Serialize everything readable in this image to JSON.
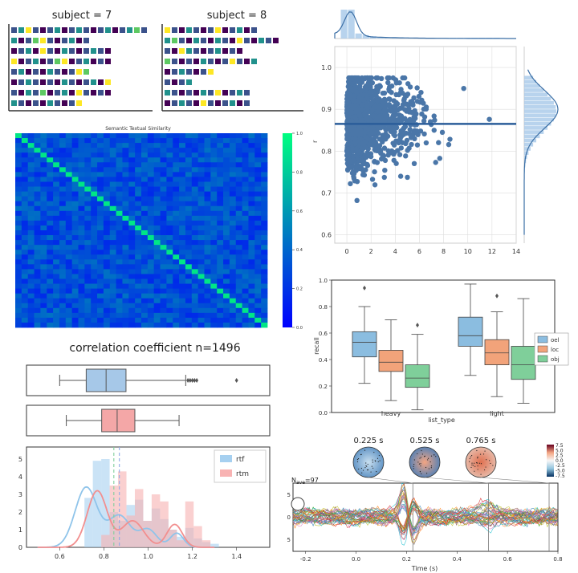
{
  "colors": {
    "viridis": [
      "#440154",
      "#3b528b",
      "#21918c",
      "#5ec962",
      "#fde725",
      "#2c728e",
      "#31688e",
      "#7ad151",
      "#fde725"
    ],
    "scatter": "#4a76a8",
    "blue_fill": "#a6c8e8",
    "red_fill": "#f4a7a7",
    "box_orange": "#f2a37a",
    "box_green": "#7fcf9a",
    "box_blue": "#8bbde0",
    "rtf": "#8fc4ea",
    "rtm": "#f28f8f"
  },
  "chart_data": [
    {
      "id": "subject-grids",
      "type": "heatmap",
      "titles": [
        "subject = 7",
        "subject = 8"
      ],
      "subject7": [
        [
          1,
          2,
          4,
          1,
          0,
          1,
          2,
          0,
          1,
          2,
          1,
          0,
          1,
          2,
          0,
          1,
          2,
          3,
          1
        ],
        [
          2,
          0,
          1,
          3,
          4,
          1,
          0,
          1,
          2,
          0,
          1
        ],
        [
          0,
          1,
          2,
          0,
          4,
          1,
          0,
          2,
          1,
          0,
          1,
          2,
          1,
          0
        ],
        [
          4,
          0,
          1,
          2,
          0,
          1,
          3,
          4,
          0,
          1,
          2,
          0,
          1,
          0
        ],
        [
          1,
          2,
          0,
          1,
          0,
          2,
          1,
          0,
          1,
          4,
          3
        ],
        [
          0,
          1,
          2,
          1,
          0,
          1,
          0,
          2,
          1,
          0,
          1,
          2,
          0,
          4
        ],
        [
          1,
          0,
          2,
          1,
          3,
          0,
          1,
          2,
          0,
          4,
          1,
          0,
          1,
          0
        ],
        [
          2,
          1,
          0,
          1,
          0,
          2,
          1,
          0,
          1,
          4
        ]
      ],
      "subject8": [
        [
          4,
          1,
          0,
          2,
          1,
          0,
          1,
          4,
          0,
          1,
          2,
          0,
          1
        ],
        [
          2,
          3,
          1,
          0,
          2,
          1,
          0,
          2,
          1,
          0,
          4,
          1,
          0,
          2,
          1,
          0
        ],
        [
          1,
          0,
          4,
          2,
          1,
          0,
          1,
          2,
          0,
          1,
          0
        ],
        [
          3,
          1,
          0,
          1,
          0,
          2,
          1,
          0,
          1,
          4,
          1,
          0,
          2
        ],
        [
          0,
          1,
          2,
          1,
          0,
          1,
          4
        ],
        [
          1,
          0,
          1,
          2
        ],
        [
          2,
          1,
          0,
          1,
          0,
          2,
          1,
          4,
          0,
          1,
          2,
          1
        ],
        [
          0,
          1,
          2,
          1,
          0,
          4,
          1,
          0,
          1,
          2,
          0,
          1
        ]
      ]
    },
    {
      "id": "similarity-matrix",
      "type": "heatmap",
      "title": "Semantic Textual Similarity",
      "size": 40,
      "colorbar_ticks": [
        "0.0",
        "0.2",
        "0.4",
        "0.6",
        "0.8",
        "1.0"
      ]
    },
    {
      "id": "joint-scatter",
      "type": "scatter",
      "xlim": [
        -1,
        14
      ],
      "ylim": [
        0.58,
        1.05
      ],
      "xticks": [
        "0",
        "2",
        "4",
        "6",
        "8",
        "10",
        "12",
        "14"
      ],
      "yticks": [
        "0.6",
        "0.7",
        "0.8",
        "0.9",
        "1.0"
      ],
      "ylabel": "r",
      "mean_y": 0.865,
      "n_points": 1400
    },
    {
      "id": "grouped-boxplot",
      "type": "bar",
      "categories": [
        "heavy",
        "light"
      ],
      "xlabel": "list_type",
      "ylabel": "recall",
      "ylim": [
        0,
        1.0
      ],
      "yticks": [
        "0.0",
        "0.2",
        "0.4",
        "0.6",
        "0.8",
        "1.0"
      ],
      "legend": [
        "oel",
        "loc",
        "obj"
      ],
      "legend_position": "right",
      "series": [
        {
          "name": "oel",
          "stats": [
            [
              0.22,
              0.42,
              0.53,
              0.61,
              0.8
            ],
            [
              0.28,
              0.5,
              0.58,
              0.72,
              0.97
            ]
          ],
          "outliers": [
            [
              0.94
            ],
            []
          ]
        },
        {
          "name": "loc",
          "stats": [
            [
              0.09,
              0.31,
              0.38,
              0.47,
              0.7
            ],
            [
              0.12,
              0.36,
              0.45,
              0.55,
              0.76
            ]
          ],
          "outliers": [
            [],
            [
              0.88
            ]
          ]
        },
        {
          "name": "obj",
          "stats": [
            [
              0.02,
              0.19,
              0.26,
              0.36,
              0.59
            ],
            [
              0.07,
              0.25,
              0.36,
              0.5,
              0.86
            ]
          ],
          "outliers": [
            [
              0.66
            ],
            []
          ]
        }
      ]
    },
    {
      "id": "correlation-dist",
      "type": "area",
      "title": "correlation coefficient n=1496",
      "xlim": [
        0.45,
        1.55
      ],
      "xticks": [
        "0.6",
        "0.8",
        "1.0",
        "1.2",
        "1.4"
      ],
      "yticks": [
        "0",
        "1",
        "2",
        "3",
        "4",
        "5"
      ],
      "legend": [
        "rtf",
        "rtm"
      ],
      "boxes": [
        {
          "name": "rtf",
          "stats": [
            0.6,
            0.72,
            0.81,
            0.9,
            1.17
          ],
          "outliers": [
            1.18,
            1.19,
            1.2,
            1.21,
            1.22,
            1.4
          ]
        },
        {
          "name": "rtm",
          "stats": [
            0.63,
            0.79,
            0.86,
            0.94,
            1.14
          ],
          "outliers": []
        }
      ],
      "mean_lines": [
        0.845,
        0.87
      ]
    },
    {
      "id": "evoked-response",
      "type": "line",
      "label": "N",
      "label_sub": "ave",
      "label_value": "=97",
      "xlabel": "Time (s)",
      "xlim": [
        -0.25,
        0.8
      ],
      "xticks": [
        "-0.2",
        "0.0",
        "0.2",
        "0.4",
        "0.6",
        "0.8"
      ],
      "yticks": [
        "5",
        "0",
        "-5"
      ],
      "topomap_times": [
        "0.225 s",
        "0.525 s",
        "0.765 s"
      ],
      "topo_time_values": [
        0.225,
        0.525,
        0.765
      ],
      "colorbar_ticks": [
        "7.5",
        "5.0",
        "2.5",
        "0.0",
        "-2.5",
        "-5.0",
        "-7.5"
      ]
    }
  ]
}
